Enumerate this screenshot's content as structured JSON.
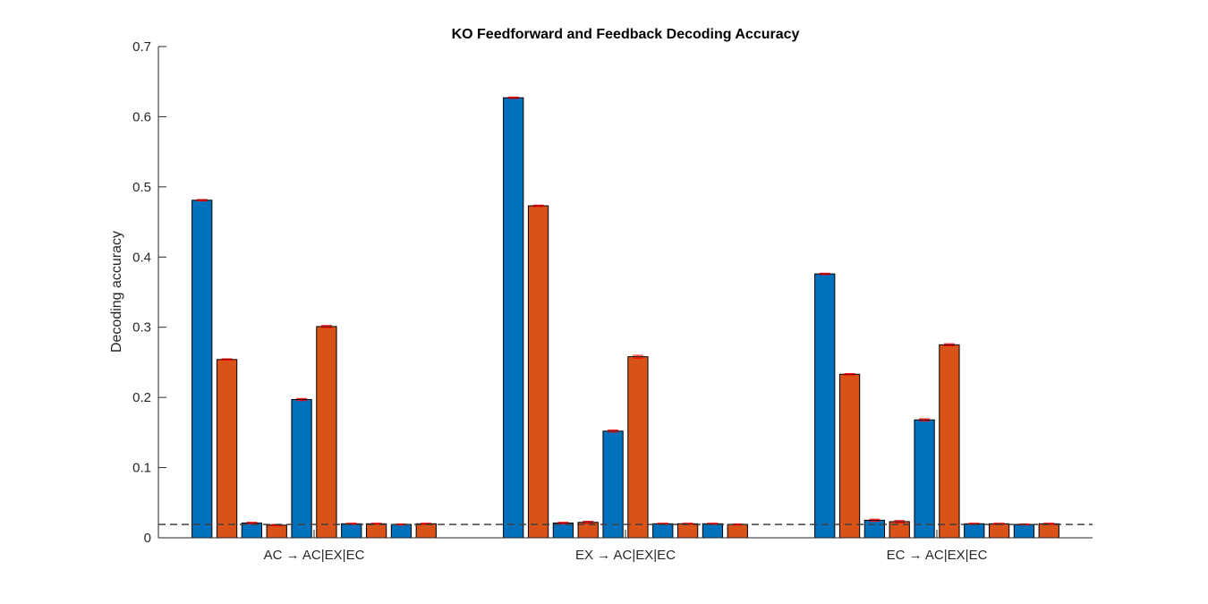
{
  "chart_data": {
    "type": "bar",
    "title": "KO Feedforward and Feedback Decoding Accuracy",
    "xlabel": "",
    "ylabel": "Decoding accuracy",
    "ylim": [
      0,
      0.7
    ],
    "yticks": [
      0,
      0.1,
      0.2,
      0.3,
      0.4,
      0.5,
      0.6,
      0.7
    ],
    "ytick_labels": [
      "0",
      "0.1",
      "0.2",
      "0.3",
      "0.4",
      "0.5",
      "0.6",
      "0.7"
    ],
    "grid": false,
    "legend": "none",
    "categories": [
      "AC → AC|EX|EC",
      "EX → AC|EX|EC",
      "EC → AC|EX|EC"
    ],
    "bars_per_group": 10,
    "bar_colors": [
      "#0072BD",
      "#D95319"
    ],
    "error_bar_color": "#FF0000",
    "chance_level": 0.019,
    "chance_line_color": "#404040",
    "groups": [
      {
        "values": [
          0.481,
          0.254,
          0.021,
          0.018,
          0.197,
          0.301,
          0.02,
          0.02,
          0.019,
          0.02
        ],
        "errors": [
          0.001,
          0.001,
          0.001,
          0.001,
          0.0015,
          0.0015,
          0.0008,
          0.0008,
          0.0008,
          0.0008
        ]
      },
      {
        "values": [
          0.627,
          0.473,
          0.021,
          0.022,
          0.152,
          0.258,
          0.02,
          0.02,
          0.02,
          0.019
        ],
        "errors": [
          0.001,
          0.001,
          0.001,
          0.0015,
          0.0015,
          0.002,
          0.0008,
          0.0008,
          0.0008,
          0.0008
        ]
      },
      {
        "values": [
          0.376,
          0.233,
          0.025,
          0.023,
          0.168,
          0.275,
          0.02,
          0.02,
          0.019,
          0.02
        ],
        "errors": [
          0.001,
          0.001,
          0.0015,
          0.0015,
          0.0015,
          0.0015,
          0.0008,
          0.0008,
          0.0008,
          0.0008
        ]
      }
    ]
  }
}
